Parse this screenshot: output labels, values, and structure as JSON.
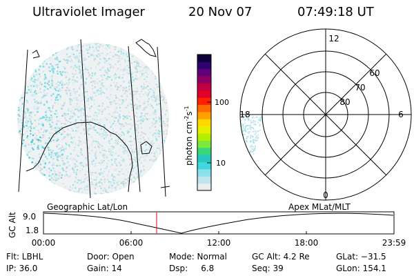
{
  "header": {
    "instrument": "Ultraviolet Imager",
    "date": "20 Nov 07",
    "time": "07:49:18 UT"
  },
  "colorbar": {
    "unit_label": "photon cm",
    "unit_exp1": "-2",
    "unit_s": "s",
    "unit_exp2": "-1",
    "ticks": [
      "100",
      "10"
    ],
    "colors": [
      "#e8eef0",
      "#bfe6ee",
      "#8ee0ea",
      "#3fd8e0",
      "#28c8c0",
      "#3ad67a",
      "#7be83a",
      "#b0f000",
      "#e6f000",
      "#ffd800",
      "#ffa000",
      "#ff6a00",
      "#ff2000",
      "#e00028",
      "#c00040",
      "#900060",
      "#60007a",
      "#300070",
      "#10003a"
    ]
  },
  "polar_plot": {
    "labels": {
      "top": "12",
      "bottom": "0",
      "left": "18",
      "right": "6",
      "lat60": "60",
      "lat70": "70",
      "lat80": "80"
    }
  },
  "timeline": {
    "left_label": "Geographic Lat/Lon",
    "right_label": "Apex MLat/MLT",
    "yaxis_title": "GC Alt",
    "y_ticks": [
      "9.0",
      "1.8"
    ],
    "x_ticks": [
      "00:00",
      "06:00",
      "12:00",
      "18:00",
      "23:59"
    ],
    "current_marker_color": "#e00000"
  },
  "info": {
    "filter": "Flt: LBHL",
    "ip": "IP: 36.0",
    "door": "Door: Open",
    "gain": "Gain: 14",
    "mode": "Mode: Normal",
    "dsp": "Dsp:     6.8",
    "gc_alt": "GC Alt: 4.2 Re",
    "seq": "Seq: 39",
    "glat": "GLat: −31.5",
    "glon": "GLon: 154.1"
  }
}
